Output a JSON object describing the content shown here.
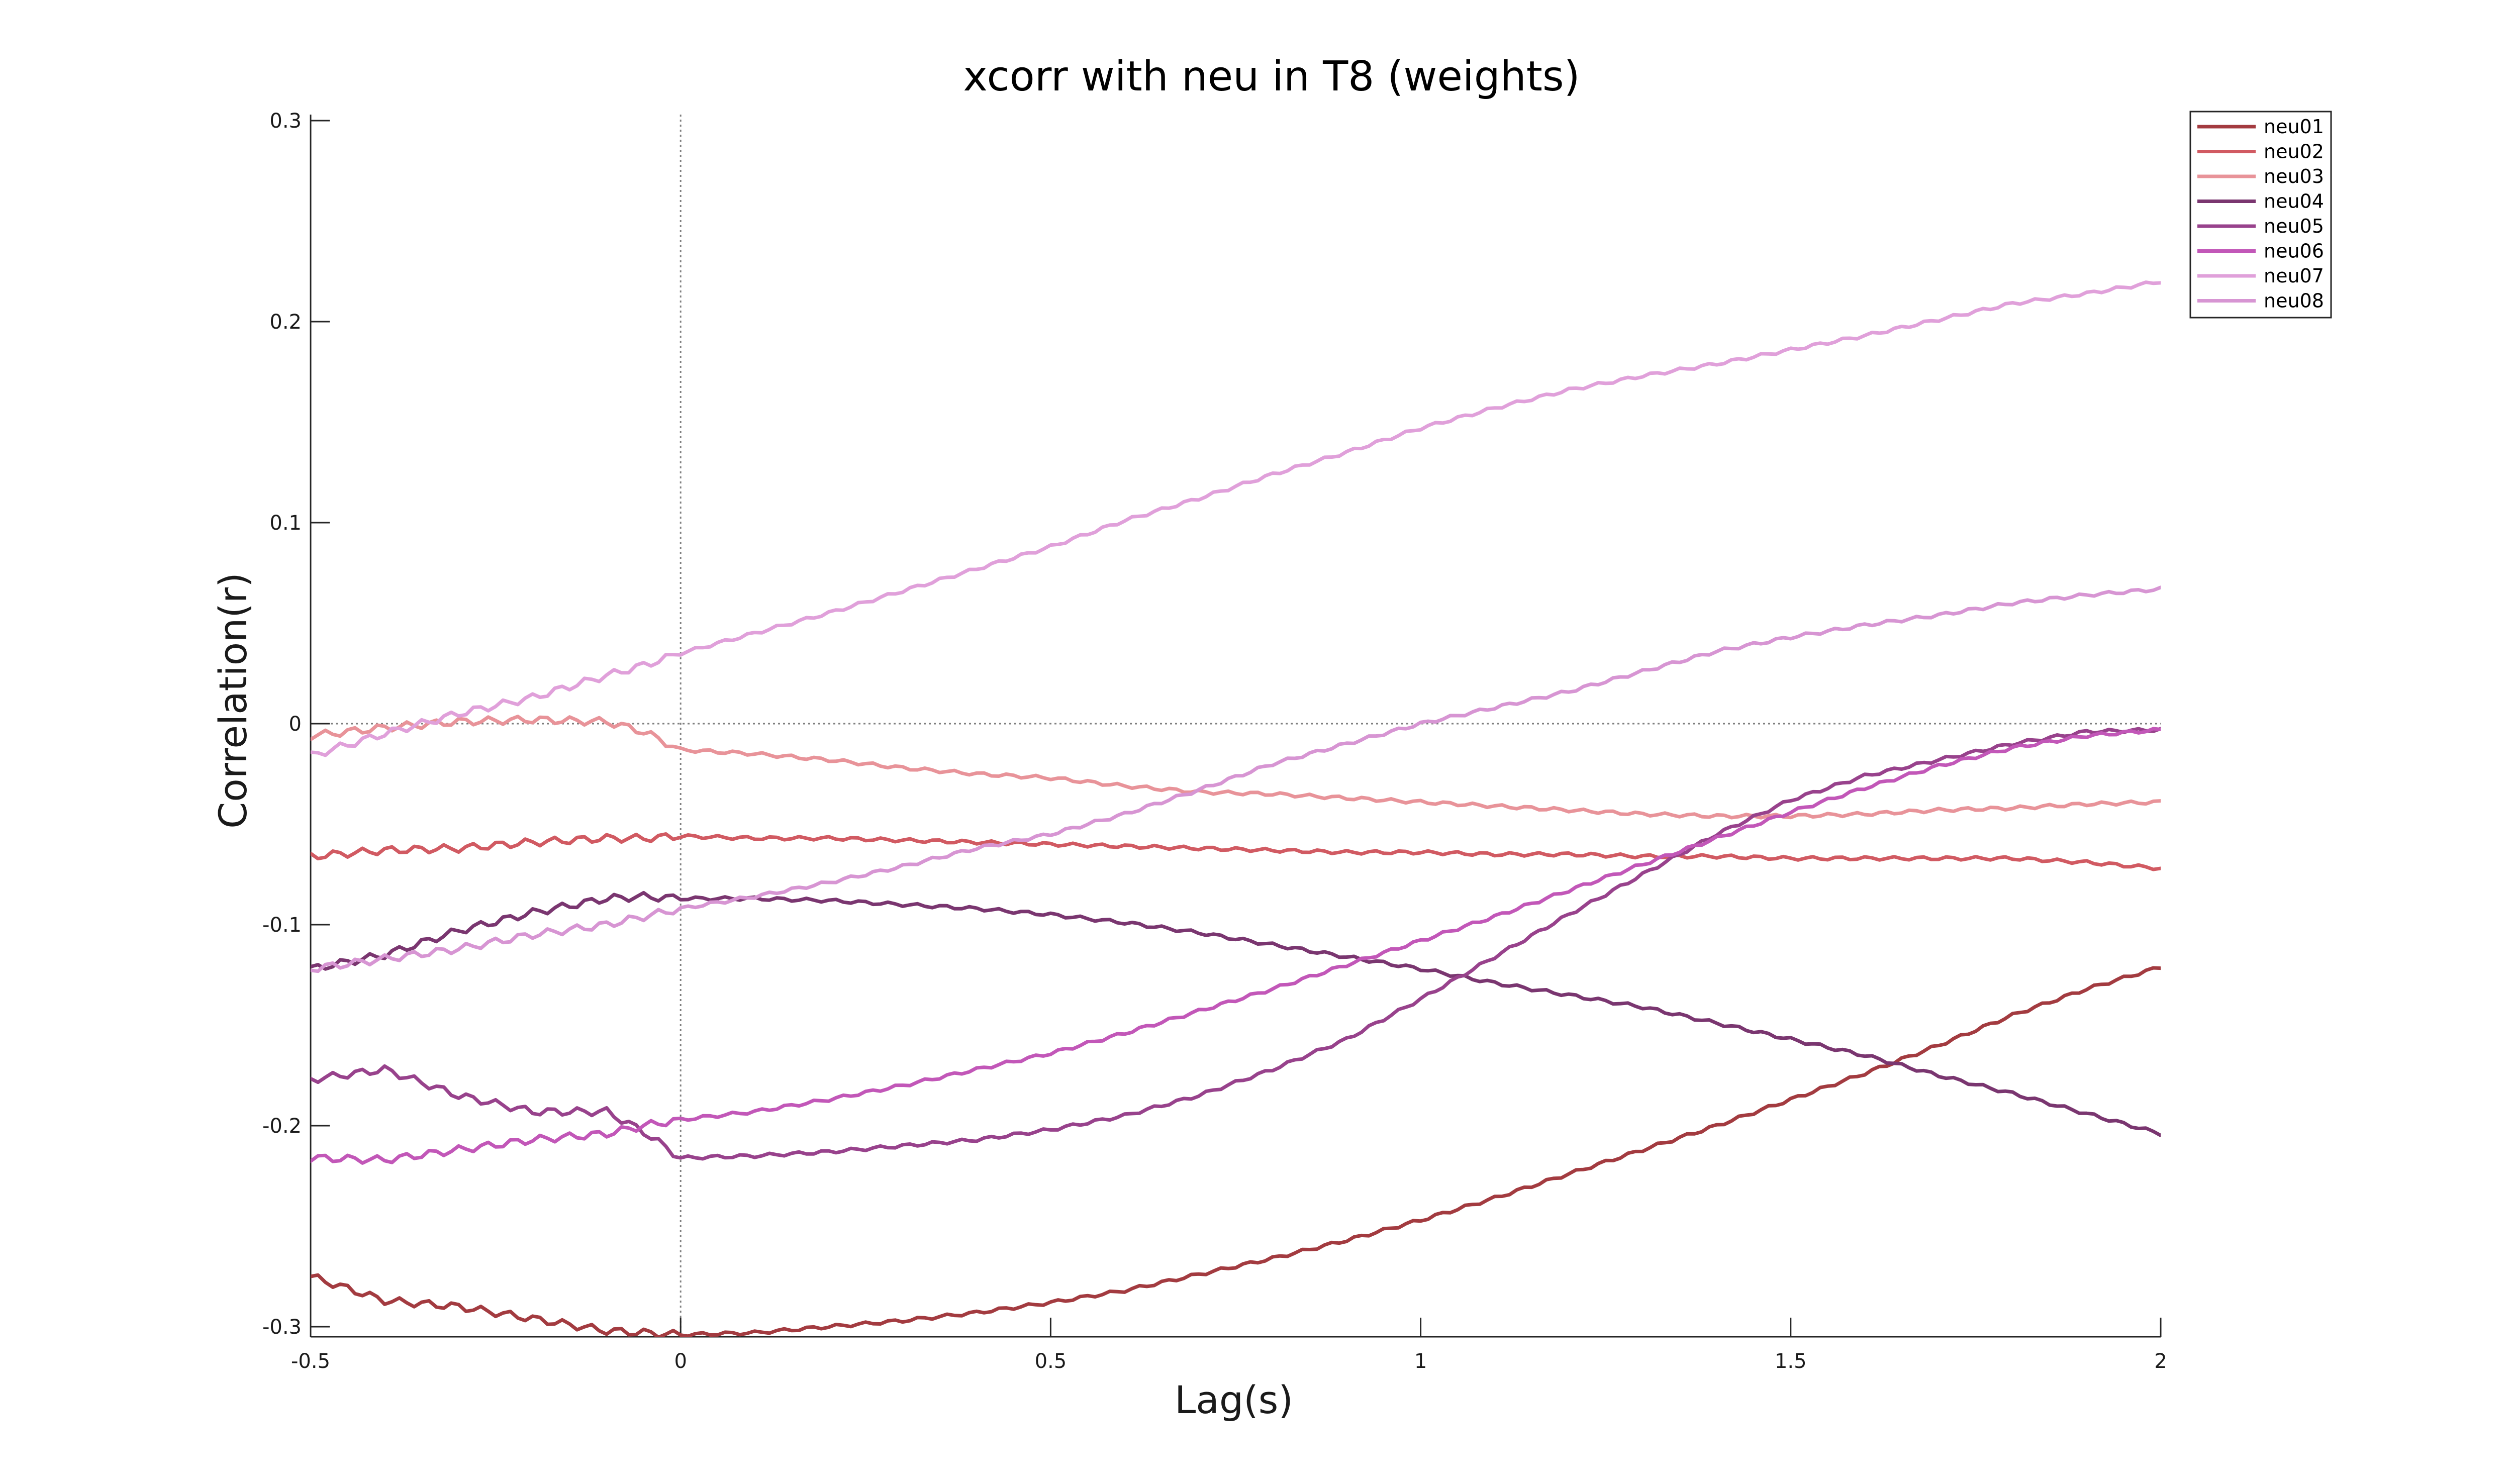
{
  "chart_data": {
    "type": "line",
    "title": "xcorr with neu in T8 (weights)",
    "xlabel": "Lag(s)",
    "ylabel": "Correlation(r)",
    "xlim": [
      -0.5,
      2
    ],
    "ylim": [
      -0.305,
      0.303
    ],
    "xticks": [
      -0.5,
      0,
      0.5,
      1,
      1.5,
      2
    ],
    "xtick_labels": [
      "-0.5",
      "0",
      "0.5",
      "1",
      "1.5",
      "2"
    ],
    "yticks": [
      -0.3,
      -0.2,
      -0.1,
      0,
      0.1,
      0.2,
      0.3
    ],
    "ytick_labels": [
      "-0.3",
      "-0.2",
      "-0.1",
      "0",
      "0.1",
      "0.2",
      "0.3"
    ],
    "grid": false,
    "zero_lines": true,
    "legend_position": "top-right",
    "x": [
      -0.5,
      -0.4,
      -0.3,
      -0.2,
      -0.1,
      -0.05,
      0,
      0.1,
      0.2,
      0.3,
      0.4,
      0.5,
      0.6,
      0.7,
      0.8,
      0.9,
      1.0,
      1.1,
      1.2,
      1.3,
      1.4,
      1.5,
      1.6,
      1.7,
      1.8,
      1.9,
      2.0
    ],
    "series": [
      {
        "name": "neu01",
        "color": "#A33B40",
        "values": [
          -0.275,
          -0.287,
          -0.29,
          -0.296,
          -0.302,
          -0.303,
          -0.304,
          -0.303,
          -0.3,
          -0.297,
          -0.293,
          -0.288,
          -0.282,
          -0.274,
          -0.266,
          -0.257,
          -0.247,
          -0.236,
          -0.224,
          -0.212,
          -0.2,
          -0.187,
          -0.174,
          -0.16,
          -0.145,
          -0.132,
          -0.121
        ]
      },
      {
        "name": "neu02",
        "color": "#D15A62",
        "values": [
          -0.066,
          -0.063,
          -0.062,
          -0.059,
          -0.057,
          -0.057,
          -0.056,
          -0.057,
          -0.057,
          -0.058,
          -0.059,
          -0.06,
          -0.061,
          -0.062,
          -0.063,
          -0.064,
          -0.064,
          -0.065,
          -0.065,
          -0.066,
          -0.066,
          -0.067,
          -0.067,
          -0.067,
          -0.067,
          -0.069,
          -0.072
        ]
      },
      {
        "name": "neu03",
        "color": "#E89399",
        "values": [
          -0.006,
          -0.002,
          0.001,
          0.002,
          0.001,
          -0.004,
          -0.013,
          -0.015,
          -0.018,
          -0.022,
          -0.025,
          -0.027,
          -0.031,
          -0.034,
          -0.035,
          -0.037,
          -0.039,
          -0.041,
          -0.043,
          -0.045,
          -0.046,
          -0.046,
          -0.045,
          -0.043,
          -0.042,
          -0.04,
          -0.039
        ]
      },
      {
        "name": "neu04",
        "color": "#7A3670",
        "values": [
          -0.122,
          -0.115,
          -0.103,
          -0.094,
          -0.087,
          -0.086,
          -0.087,
          -0.087,
          -0.088,
          -0.09,
          -0.092,
          -0.095,
          -0.099,
          -0.104,
          -0.11,
          -0.116,
          -0.122,
          -0.129,
          -0.135,
          -0.141,
          -0.149,
          -0.157,
          -0.165,
          -0.175,
          -0.184,
          -0.194,
          -0.204
        ]
      },
      {
        "name": "neu05",
        "color": "#98428C",
        "values": [
          -0.177,
          -0.172,
          -0.185,
          -0.193,
          -0.193,
          -0.203,
          -0.216,
          -0.215,
          -0.213,
          -0.21,
          -0.207,
          -0.202,
          -0.195,
          -0.185,
          -0.172,
          -0.157,
          -0.137,
          -0.116,
          -0.095,
          -0.075,
          -0.055,
          -0.038,
          -0.026,
          -0.018,
          -0.01,
          -0.004,
          -0.003
        ]
      },
      {
        "name": "neu06",
        "color": "#C257B8",
        "values": [
          -0.216,
          -0.217,
          -0.212,
          -0.207,
          -0.204,
          -0.2,
          -0.197,
          -0.193,
          -0.187,
          -0.18,
          -0.172,
          -0.164,
          -0.154,
          -0.143,
          -0.132,
          -0.12,
          -0.108,
          -0.096,
          -0.083,
          -0.07,
          -0.057,
          -0.044,
          -0.032,
          -0.021,
          -0.012,
          -0.006,
          -0.003
        ]
      },
      {
        "name": "neu07",
        "color": "#E0A0DA",
        "values": [
          -0.016,
          -0.005,
          0.005,
          0.013,
          0.024,
          0.029,
          0.035,
          0.045,
          0.055,
          0.066,
          0.077,
          0.088,
          0.101,
          0.112,
          0.124,
          0.135,
          0.147,
          0.157,
          0.166,
          0.173,
          0.179,
          0.186,
          0.193,
          0.201,
          0.209,
          0.214,
          0.22
        ]
      },
      {
        "name": "neu08",
        "color": "#D795D3",
        "values": [
          -0.122,
          -0.117,
          -0.112,
          -0.105,
          -0.1,
          -0.096,
          -0.092,
          -0.086,
          -0.079,
          -0.071,
          -0.062,
          -0.055,
          -0.045,
          -0.033,
          -0.02,
          -0.01,
          0.0,
          0.008,
          0.016,
          0.026,
          0.036,
          0.043,
          0.049,
          0.054,
          0.06,
          0.064,
          0.067
        ]
      }
    ]
  }
}
